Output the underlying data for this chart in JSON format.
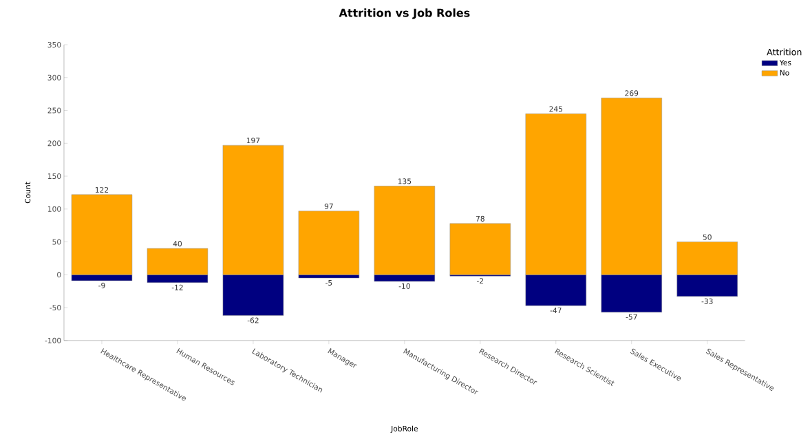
{
  "chart_data": {
    "type": "bar",
    "title": "Attrition vs Job Roles",
    "xlabel": "JobRole",
    "ylabel": "Count",
    "legend_title": "Attrition",
    "categories": [
      "Healthcare Representative",
      "Human Resources",
      "Laboratory Technician",
      "Manager",
      "Manufacturing Director",
      "Research Director",
      "Research Scientist",
      "Sales Executive",
      "Sales Representative"
    ],
    "series": [
      {
        "name": "Yes",
        "color": "#000080",
        "values": [
          -9,
          -12,
          -62,
          -5,
          -10,
          -2,
          -47,
          -57,
          -33
        ]
      },
      {
        "name": "No",
        "color": "#ffa500",
        "values": [
          122,
          40,
          197,
          97,
          135,
          78,
          245,
          269,
          50
        ]
      }
    ],
    "stacked": true,
    "data_labels": true,
    "legend": "top right",
    "grid": false,
    "ylim": [
      -100,
      350
    ],
    "yticks": [
      -100,
      -50,
      0,
      50,
      100,
      150,
      200,
      250,
      300,
      350
    ]
  }
}
